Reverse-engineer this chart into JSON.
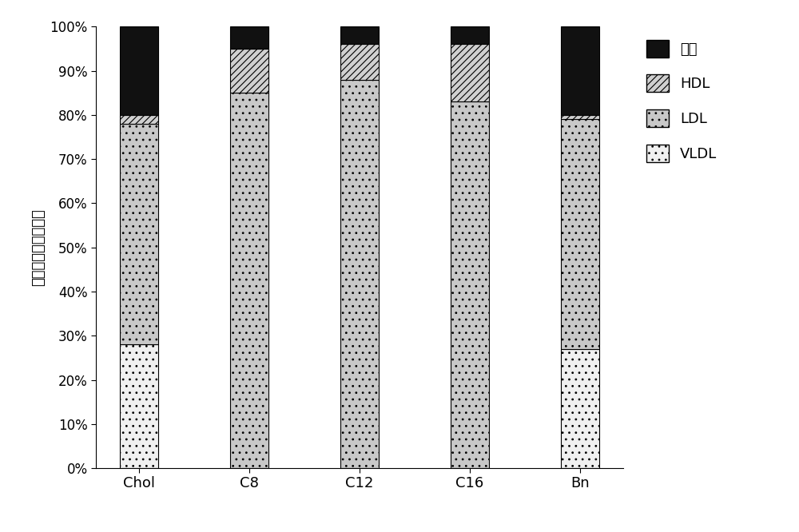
{
  "categories": [
    "Chol",
    "C8",
    "C12",
    "C16",
    "Bn"
  ],
  "VLDL": [
    28,
    0,
    0,
    0,
    27
  ],
  "LDL": [
    50,
    85,
    88,
    83,
    52
  ],
  "HDL": [
    2,
    10,
    8,
    13,
    1
  ],
  "Other": [
    20,
    5,
    4,
    4,
    20
  ],
  "ylabel": "在各组分中的转移率",
  "bar_width": 0.35,
  "VLDL_color": "#f0f0f0",
  "LDL_color": "#c8c8c8",
  "HDL_color": "#d0d0d0",
  "Other_color": "#111111",
  "VLDL_hatch": "..",
  "LDL_hatch": "..",
  "HDL_hatch": "////",
  "Other_hatch": "",
  "legend_labels": [
    "其他",
    "HDL",
    "LDL",
    "VLDL"
  ],
  "figsize": [
    10.0,
    6.66
  ],
  "dpi": 100
}
